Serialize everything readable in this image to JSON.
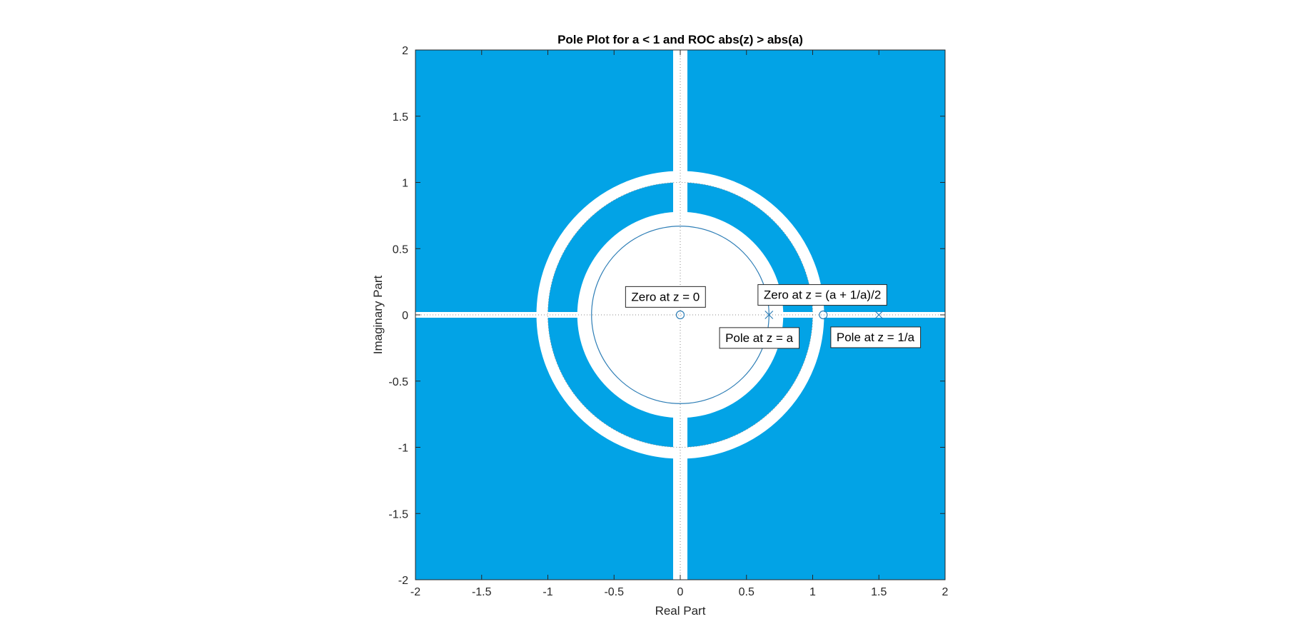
{
  "chart_data": {
    "type": "scatter",
    "title": "Pole Plot for a < 1 and ROC abs(z) > abs(a)",
    "xlabel": "Real Part",
    "ylabel": "Imaginary Part",
    "xlim": [
      -2,
      2
    ],
    "ylim": [
      -2,
      2
    ],
    "xticks": [
      -2,
      -1.5,
      -1,
      -0.5,
      0,
      0.5,
      1,
      1.5,
      2
    ],
    "yticks": [
      -2,
      -1.5,
      -1,
      -0.5,
      0,
      0.5,
      1,
      1.5,
      2
    ],
    "xtick_labels": [
      "-2",
      "-1.5",
      "-1",
      "-0.5",
      "0",
      "0.5",
      "1",
      "1.5",
      "2"
    ],
    "ytick_labels": [
      "-2",
      "-1.5",
      "-1",
      "-0.5",
      "0",
      "0.5",
      "1",
      "1.5",
      "2"
    ],
    "roc_fill_color": "#02A3E6",
    "series_color": "#2E7EB6",
    "roc_inner_radius": 0.67,
    "unit_circle_radius": 1,
    "zeros": [
      {
        "x": 0,
        "y": 0
      },
      {
        "x": 1.08,
        "y": 0
      }
    ],
    "poles": [
      {
        "x": 0.67,
        "y": 0
      },
      {
        "x": 1.5,
        "y": 0
      }
    ],
    "annotations": [
      {
        "text": "Zero at z = 0",
        "x": -0.37,
        "y": 0.13
      },
      {
        "text": "Zero at z = (a + 1/a)/2",
        "x": 0.63,
        "y": 0.145
      },
      {
        "text": "Pole at z = a",
        "x": 0.34,
        "y": -0.18
      },
      {
        "text": "Pole at z = 1/a",
        "x": 1.18,
        "y": -0.175
      }
    ]
  }
}
